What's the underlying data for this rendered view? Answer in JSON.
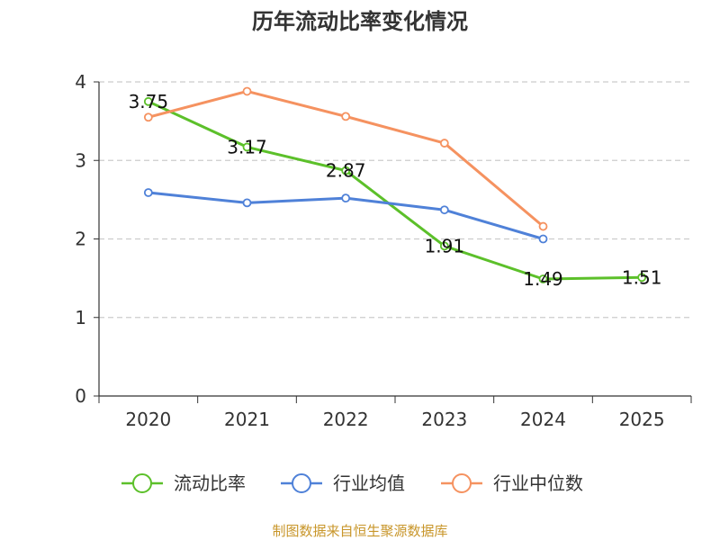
{
  "chart_data": {
    "type": "line",
    "title": "历年流动比率变化情况",
    "categories": [
      "2020",
      "2021",
      "2022",
      "2023",
      "2024",
      "2025"
    ],
    "ylim": [
      0,
      4
    ],
    "yticks": [
      "0",
      "1",
      "2",
      "3",
      "4"
    ],
    "grid": "horizontal-dashed",
    "legend_position": "bottom",
    "series": [
      {
        "name": "流动比率",
        "color": "#5cc02a",
        "values": [
          3.75,
          3.17,
          2.87,
          1.91,
          1.49,
          1.51
        ],
        "labels": [
          "3.75",
          "3.17",
          "2.87",
          "1.91",
          "1.49",
          "1.51"
        ]
      },
      {
        "name": "行业均值",
        "color": "#4f81d8",
        "values": [
          2.59,
          2.46,
          2.52,
          2.37,
          2.0,
          null
        ]
      },
      {
        "name": "行业中位数",
        "color": "#f59260",
        "values": [
          3.55,
          3.88,
          3.56,
          3.22,
          2.16,
          null
        ]
      }
    ]
  },
  "source": "制图数据来自恒生聚源数据库"
}
